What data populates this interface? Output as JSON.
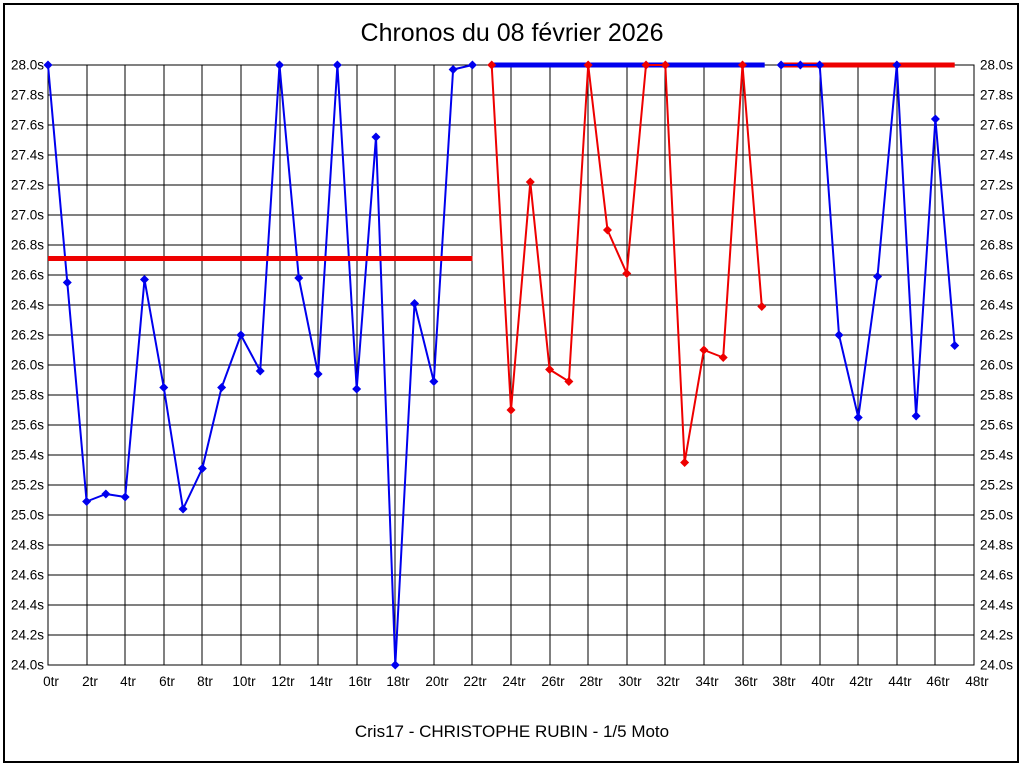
{
  "title": "Chronos du 08 février 2026",
  "subtitle": "Cris17 - CHRISTOPHE RUBIN - 1/5 Moto",
  "colors": {
    "blue": "#0000EE",
    "red": "#EE0000",
    "grid": "#000000",
    "text": "#000000",
    "background": "#FFFFFF"
  },
  "chart_data": {
    "type": "line",
    "title": "Chronos du 08 février 2026",
    "subtitle": "Cris17 - CHRISTOPHE RUBIN - 1/5 Moto",
    "x_unit": "tr",
    "y_unit": "s",
    "xlim": [
      0,
      48
    ],
    "ylim": [
      24.0,
      28.0
    ],
    "x_tick_step": 2,
    "y_tick_step": 0.2,
    "grid": true,
    "legend": "none",
    "x_tick_labels": [
      "0tr",
      "2tr",
      "4tr",
      "6tr",
      "8tr",
      "10tr",
      "12tr",
      "14tr",
      "16tr",
      "18tr",
      "20tr",
      "22tr",
      "24tr",
      "26tr",
      "28tr",
      "30tr",
      "32tr",
      "34tr",
      "36tr",
      "38tr",
      "40tr",
      "42tr",
      "44tr",
      "46tr",
      "48tr"
    ],
    "y_tick_labels": [
      "28.0s",
      "27.8s",
      "27.6s",
      "27.4s",
      "27.2s",
      "27.0s",
      "26.8s",
      "26.6s",
      "26.4s",
      "26.2s",
      "26.0s",
      "25.8s",
      "25.6s",
      "25.4s",
      "25.2s",
      "25.0s",
      "24.8s",
      "24.6s",
      "24.4s",
      "24.2s",
      "24.0s"
    ],
    "series": [
      {
        "name": "blue-stint-1",
        "color": "blue",
        "marker": "diamond",
        "line_width": 2,
        "points": [
          [
            0,
            28.0
          ],
          [
            1,
            26.55
          ],
          [
            2,
            25.09
          ],
          [
            3,
            25.14
          ],
          [
            4,
            25.12
          ],
          [
            5,
            26.57
          ],
          [
            6,
            25.85
          ],
          [
            7,
            25.04
          ],
          [
            8,
            25.31
          ],
          [
            9,
            25.85
          ],
          [
            10,
            26.2
          ],
          [
            11,
            25.96
          ],
          [
            12,
            28.0
          ],
          [
            13,
            26.58
          ],
          [
            14,
            25.94
          ],
          [
            15,
            28.0
          ],
          [
            16,
            25.84
          ],
          [
            17,
            27.52
          ],
          [
            18,
            24.0
          ],
          [
            19,
            26.41
          ],
          [
            20,
            25.89
          ],
          [
            21,
            27.97
          ],
          [
            22,
            28.0
          ]
        ]
      },
      {
        "name": "red-stint",
        "color": "red",
        "marker": "diamond",
        "line_width": 2,
        "points": [
          [
            23,
            28.0
          ],
          [
            24,
            25.7
          ],
          [
            25,
            27.22
          ],
          [
            26,
            25.97
          ],
          [
            27,
            25.89
          ],
          [
            28,
            28.0
          ],
          [
            29,
            26.9
          ],
          [
            30,
            26.61
          ],
          [
            31,
            28.0
          ],
          [
            32,
            28.0
          ],
          [
            33,
            25.35
          ],
          [
            34,
            26.1
          ],
          [
            35,
            26.05
          ],
          [
            36,
            28.0
          ],
          [
            37,
            26.39
          ]
        ]
      },
      {
        "name": "blue-stint-2",
        "color": "blue",
        "marker": "diamond",
        "line_width": 2,
        "points": [
          [
            38,
            28.0
          ],
          [
            39,
            28.0
          ],
          [
            40,
            28.0
          ],
          [
            41,
            26.2
          ],
          [
            42,
            25.65
          ],
          [
            43,
            26.59
          ],
          [
            44,
            28.0
          ],
          [
            45,
            25.66
          ],
          [
            46,
            27.64
          ],
          [
            47,
            26.13
          ]
        ]
      }
    ],
    "flat_lines": [
      {
        "name": "red-reference-line",
        "color": "red",
        "y": 26.71,
        "x_from": 0,
        "x_to": 22,
        "line_width": 5
      },
      {
        "name": "blue-flat-top-line",
        "color": "blue",
        "y": 28.0,
        "x_from": 23,
        "x_to": 37.15,
        "line_width": 5
      },
      {
        "name": "red-flat-top-line",
        "color": "red",
        "y": 28.0,
        "x_from": 37.9,
        "x_to": 47,
        "line_width": 5
      }
    ]
  }
}
